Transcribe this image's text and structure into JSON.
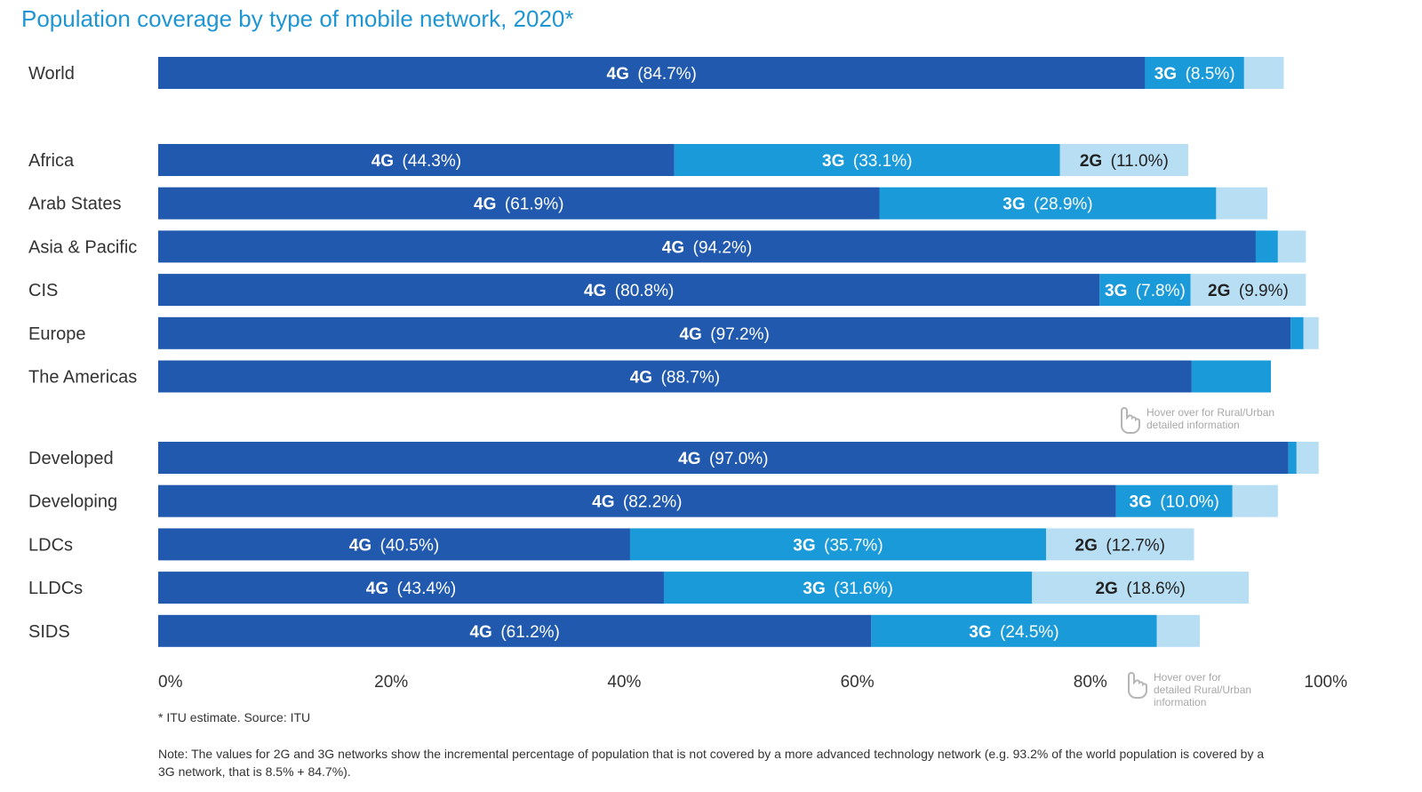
{
  "title": "Population coverage by type of mobile network, 2020*",
  "colors": {
    "4G": "#2159ae",
    "3G": "#1b9ad9",
    "2G": "#b8def3",
    "text_dark_bar": "#ffffff",
    "text_light_bar": "#222222",
    "title": "#1f96d3"
  },
  "chart_data": {
    "type": "bar",
    "orientation": "horizontal",
    "stacked": true,
    "title": "Population coverage by type of mobile network, 2020*",
    "xlim": [
      0,
      100
    ],
    "xticks": [
      0,
      20,
      40,
      60,
      80,
      100
    ],
    "xtick_labels": [
      "0%",
      "20%",
      "40%",
      "60%",
      "80%",
      "100%"
    ],
    "series_names": [
      "4G",
      "3G",
      "2G"
    ],
    "groups": [
      {
        "rows": [
          {
            "label": "World",
            "values": [
              84.7,
              8.5,
              3.4
            ],
            "labels": [
              "(84.7%)",
              "(8.5%)",
              null
            ]
          }
        ]
      },
      {
        "rows": [
          {
            "label": "Africa",
            "values": [
              44.3,
              33.1,
              11.0
            ],
            "labels": [
              "(44.3%)",
              "(33.1%)",
              "(11.0%)"
            ]
          },
          {
            "label": "Arab States",
            "values": [
              61.9,
              28.9,
              4.4
            ],
            "labels": [
              "(61.9%)",
              "(28.9%)",
              null
            ]
          },
          {
            "label": "Asia & Pacific",
            "values": [
              94.2,
              1.9,
              2.4
            ],
            "labels": [
              "(94.2%)",
              null,
              null
            ]
          },
          {
            "label": "CIS",
            "values": [
              80.8,
              7.8,
              9.9
            ],
            "labels": [
              "(80.8%)",
              "(7.8%)",
              "(9.9%)"
            ]
          },
          {
            "label": "Europe",
            "values": [
              97.2,
              1.1,
              1.3
            ],
            "labels": [
              "(97.2%)",
              null,
              null
            ]
          },
          {
            "label": "The Americas",
            "values": [
              88.7,
              6.8,
              0.0
            ],
            "labels": [
              "(88.7%)",
              null,
              null
            ]
          }
        ]
      },
      {
        "rows": [
          {
            "label": "Developed",
            "values": [
              97.0,
              0.7,
              1.9
            ],
            "labels": [
              "(97.0%)",
              null,
              null
            ]
          },
          {
            "label": "Developing",
            "values": [
              82.2,
              10.0,
              3.9
            ],
            "labels": [
              "(82.2%)",
              "(10.0%)",
              null
            ]
          },
          {
            "label": "LDCs",
            "values": [
              40.5,
              35.7,
              12.7
            ],
            "labels": [
              "(40.5%)",
              "(35.7%)",
              "(12.7%)"
            ]
          },
          {
            "label": "LLDCs",
            "values": [
              43.4,
              31.6,
              18.6
            ],
            "labels": [
              "(43.4%)",
              "(31.6%)",
              "(18.6%)"
            ]
          },
          {
            "label": "SIDS",
            "values": [
              61.2,
              24.5,
              3.7
            ],
            "labels": [
              "(61.2%)",
              "(24.5%)",
              null
            ]
          }
        ]
      }
    ],
    "hints": [
      {
        "lines": [
          "Hover over for Rural/Urban",
          "detailed information"
        ]
      },
      {
        "lines": [
          "Hover over for",
          "detailed Rural/Urban",
          "information"
        ]
      }
    ]
  },
  "footnote": "* ITU estimate. Source: ITU",
  "note": "Note: The values for 2G and 3G networks show the incremental percentage of population that is not covered by a more advanced technology network (e.g. 93.2% of the world population is covered by a 3G network, that is 8.5% + 84.7%)."
}
